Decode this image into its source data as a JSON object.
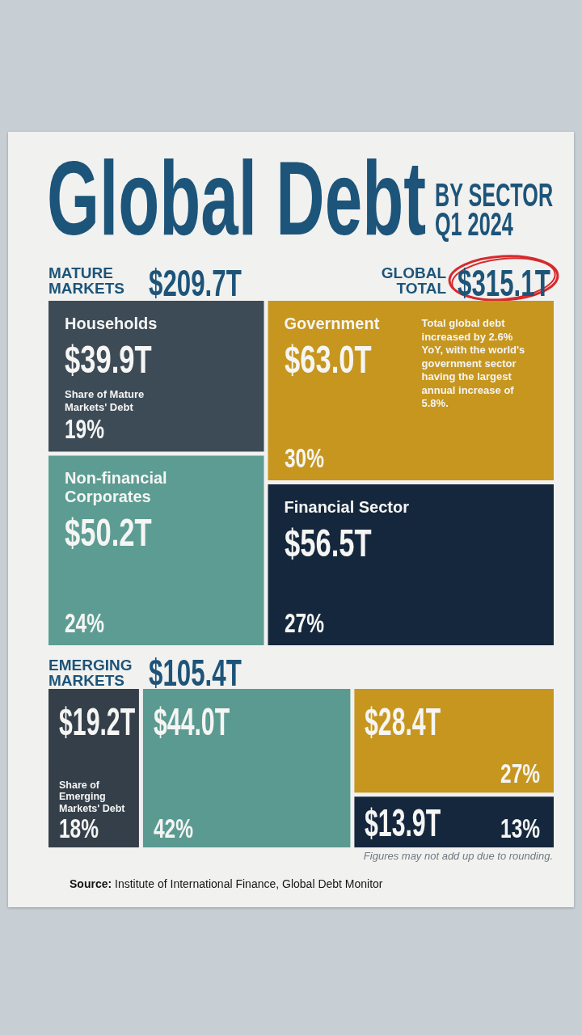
{
  "chart_data": [
    {
      "type": "other",
      "title": "Global Debt",
      "subtitle": "BY SECTOR Q1 2024",
      "annotations": [
        "GLOBAL TOTAL",
        "$315.1T"
      ]
    },
    {
      "type": "other",
      "title": "MATURE MARKETS",
      "totals": [
        "$209.7T"
      ],
      "categories": [
        "Households",
        "Non-financial Corporates",
        "Government",
        "Financial Sector"
      ],
      "colors": [
        "#3d4b57",
        "#5c9c93",
        "#c6961f",
        "#15273d"
      ],
      "values": [
        39.9,
        50.2,
        63.0,
        56.5
      ],
      "value_labels": [
        "$39.9T",
        "$50.2T",
        "$63.0T",
        "$56.5T"
      ],
      "annotations": [
        "Share of Mature Markets' Debt",
        "19%",
        "24%",
        "30%",
        "27%",
        "Total global debt increased by 2.6% YoY, with the world's government sector having the largest annual increase of 5.8%."
      ]
    },
    {
      "type": "other",
      "title": "EMERGING MARKETS",
      "totals": [
        "$105.4T"
      ],
      "categories": [
        null,
        null,
        null,
        null
      ],
      "colors": [
        "#343f4a",
        "#5a9a91",
        "#c6961f",
        "#15273d"
      ],
      "values": [
        19.2,
        44.0,
        28.4,
        13.9
      ],
      "value_labels": [
        "$19.2T",
        "$44.0T",
        "$28.4T",
        "$13.9T"
      ],
      "annotations": [
        "Share of Emerging Markets' Debt",
        "18%",
        "42%",
        "27%",
        "13%",
        "Figures may not add up due to rounding.",
        "Source: Institute of International Finance, Global Debt Monitor"
      ]
    }
  ]
}
